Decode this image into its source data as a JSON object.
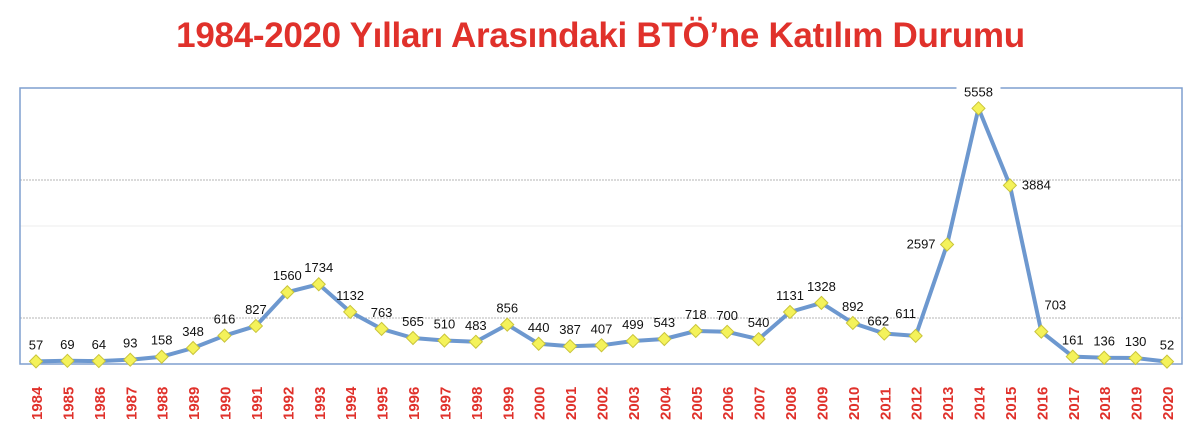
{
  "title": "1984-2020 Yılları Arasındaki BTÖ’ne Katılım Durumu",
  "colors": {
    "title": "#e0312b",
    "axis_labels": "#e0312b",
    "line": "#6d98cf",
    "marker_fill": "#f4f25a",
    "marker_stroke": "#c9c43a",
    "frame": "#7f9fcf",
    "grid": "#c8c8c8"
  },
  "chart_data": {
    "type": "line",
    "title": "1984-2020 Yılları Arasındaki BTÖ’ne Katılım Durumu",
    "xlabel": "",
    "ylabel": "",
    "ylim": [
      0,
      6000
    ],
    "grid": true,
    "gridlines": [
      1000,
      3000,
      4000
    ],
    "legend": null,
    "categories": [
      "1984",
      "1985",
      "1986",
      "1987",
      "1988",
      "1989",
      "1990",
      "1991",
      "1992",
      "1993",
      "1994",
      "1995",
      "1996",
      "1997",
      "1998",
      "1999",
      "2000",
      "2001",
      "2002",
      "2003",
      "2004",
      "2005",
      "2006",
      "2007",
      "2008",
      "2009",
      "2010",
      "2011",
      "2012",
      "2013",
      "2014",
      "2015",
      "2016",
      "2017",
      "2018",
      "2019",
      "2020"
    ],
    "series": [
      {
        "name": "Katılım",
        "values": [
          57,
          69,
          64,
          93,
          158,
          348,
          616,
          827,
          1560,
          1734,
          1132,
          763,
          565,
          510,
          483,
          856,
          440,
          387,
          407,
          499,
          543,
          718,
          700,
          540,
          1131,
          1328,
          892,
          662,
          611,
          2597,
          5558,
          3884,
          703,
          161,
          136,
          130,
          52
        ]
      }
    ]
  }
}
